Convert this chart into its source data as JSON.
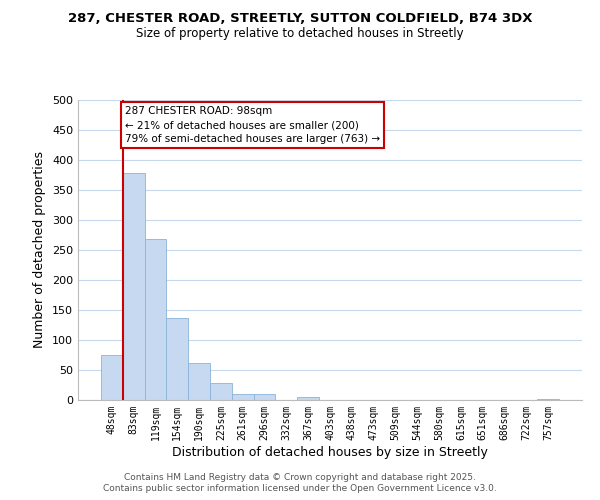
{
  "title_line1": "287, CHESTER ROAD, STREETLY, SUTTON COLDFIELD, B74 3DX",
  "title_line2": "Size of property relative to detached houses in Streetly",
  "xlabel": "Distribution of detached houses by size in Streetly",
  "ylabel": "Number of detached properties",
  "bin_labels": [
    "48sqm",
    "83sqm",
    "119sqm",
    "154sqm",
    "190sqm",
    "225sqm",
    "261sqm",
    "296sqm",
    "332sqm",
    "367sqm",
    "403sqm",
    "438sqm",
    "473sqm",
    "509sqm",
    "544sqm",
    "580sqm",
    "615sqm",
    "651sqm",
    "686sqm",
    "722sqm",
    "757sqm"
  ],
  "bar_heights": [
    75,
    378,
    268,
    137,
    62,
    29,
    10,
    10,
    0,
    5,
    0,
    0,
    0,
    0,
    0,
    0,
    0,
    0,
    0,
    0,
    2
  ],
  "bar_color": "#c6d9f0",
  "bar_edge_color": "#8bb4d8",
  "vline_color": "#cc0000",
  "annotation_title": "287 CHESTER ROAD: 98sqm",
  "annotation_line2": "← 21% of detached houses are smaller (200)",
  "annotation_line3": "79% of semi-detached houses are larger (763) →",
  "annotation_box_color": "#ffffff",
  "annotation_box_edgecolor": "#cc0000",
  "ylim": [
    0,
    500
  ],
  "yticks": [
    0,
    50,
    100,
    150,
    200,
    250,
    300,
    350,
    400,
    450,
    500
  ],
  "background_color": "#ffffff",
  "grid_color": "#c8d8ec",
  "footer_line1": "Contains HM Land Registry data © Crown copyright and database right 2025.",
  "footer_line2": "Contains public sector information licensed under the Open Government Licence v3.0."
}
